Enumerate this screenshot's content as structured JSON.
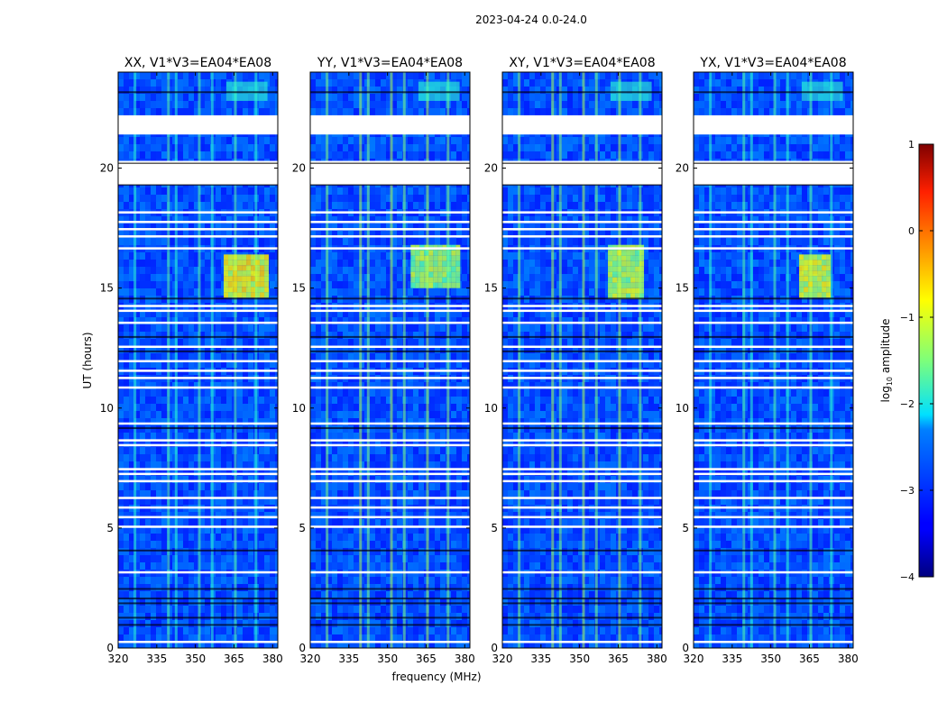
{
  "figure_title": "2023-04-24 0.0-24.0",
  "chart_data": {
    "type": "heatmap",
    "suptitle": "2023-04-24 0.0-24.0",
    "xlabel": "frequency (MHz)",
    "ylabel": "UT (hours)",
    "xlim": [
      320,
      382
    ],
    "ylim": [
      0,
      24
    ],
    "xticks": [
      320,
      335,
      350,
      365,
      380
    ],
    "yticks": [
      0,
      5,
      10,
      15,
      20
    ],
    "panels": [
      {
        "title": "XX, V1*V3=EA04*EA08",
        "bright_block_mhz": [
          361,
          377
        ],
        "bright_block_hours": [
          14.6,
          16.4
        ],
        "bright_level": -1.0
      },
      {
        "title": "YY, V1*V3=EA04*EA08",
        "bright_block_mhz": [
          359,
          378
        ],
        "bright_block_hours": [
          15.0,
          16.8
        ],
        "bright_level": -1.4
      },
      {
        "title": "XY, V1*V3=EA04*EA08",
        "bright_block_mhz": [
          361,
          375
        ],
        "bright_block_hours": [
          14.6,
          16.8
        ],
        "bright_level": -1.3
      },
      {
        "title": "YX, V1*V3=EA04*EA08",
        "bright_block_mhz": [
          361,
          372
        ],
        "bright_block_hours": [
          14.6,
          16.4
        ],
        "bright_level": -1.1
      }
    ],
    "gaps_hours": [
      [
        19.3,
        20.3
      ],
      [
        21.4,
        22.2
      ]
    ],
    "background_log_amplitude": -3.0,
    "colorbar": {
      "label": "log10 amplitude",
      "label_main": "log",
      "label_sub": "10",
      "label_tail": " amplitude",
      "range": [
        -4,
        1
      ],
      "ticks": [
        1,
        0,
        -1,
        -2,
        -3,
        -4
      ],
      "tick_labels": [
        "1",
        "0",
        "−1",
        "−2",
        "−3",
        "−4"
      ],
      "colormap": "jet"
    }
  }
}
